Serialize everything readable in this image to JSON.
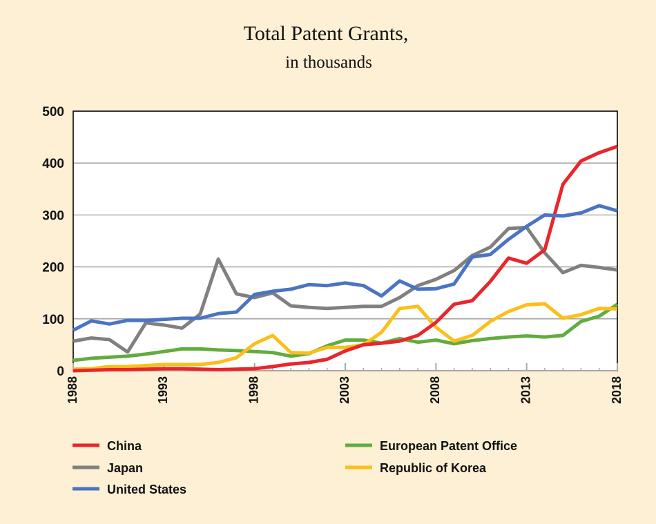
{
  "chart_data": {
    "type": "line",
    "title": "Total Patent Grants,",
    "subtitle": "in thousands",
    "xlabel": "",
    "ylabel": "",
    "xlim": [
      1988,
      2018
    ],
    "ylim": [
      0,
      500
    ],
    "yticks": [
      0,
      100,
      200,
      300,
      400,
      500
    ],
    "xticks": [
      1988,
      1993,
      1998,
      2003,
      2008,
      2013,
      2018
    ],
    "grid": true,
    "legend_position": "bottom",
    "x": [
      1988,
      1989,
      1990,
      1991,
      1992,
      1993,
      1994,
      1995,
      1996,
      1997,
      1998,
      1999,
      2000,
      2001,
      2002,
      2003,
      2004,
      2005,
      2006,
      2007,
      2008,
      2009,
      2010,
      2011,
      2012,
      2013,
      2014,
      2015,
      2016,
      2017,
      2018
    ],
    "series": [
      {
        "name": "China",
        "color": "#e8262b",
        "values": [
          0,
          1,
          2,
          2,
          3,
          4,
          4,
          3,
          2,
          3,
          4,
          8,
          13,
          16,
          22,
          38,
          50,
          53,
          57,
          68,
          93,
          128,
          135,
          172,
          217,
          207,
          233,
          359,
          404,
          420,
          432
        ]
      },
      {
        "name": "European Patent Office",
        "color": "#62ac3f",
        "values": [
          20,
          24,
          26,
          28,
          32,
          37,
          42,
          42,
          40,
          39,
          37,
          35,
          28,
          33,
          48,
          59,
          59,
          53,
          62,
          55,
          59,
          52,
          58,
          62,
          65,
          67,
          65,
          68,
          95,
          105,
          128
        ]
      },
      {
        "name": "Japan",
        "color": "#808080",
        "values": [
          57,
          63,
          60,
          36,
          92,
          88,
          82,
          109,
          215,
          148,
          141,
          150,
          125,
          122,
          120,
          122,
          124,
          124,
          141,
          164,
          176,
          193,
          222,
          238,
          274,
          276,
          227,
          189,
          203,
          199,
          194
        ]
      },
      {
        "name": "Republic of Korea",
        "color": "#fbbf1c",
        "values": [
          3,
          4,
          8,
          8,
          10,
          12,
          12,
          12,
          16,
          25,
          52,
          68,
          35,
          34,
          45,
          45,
          50,
          74,
          120,
          124,
          84,
          57,
          68,
          95,
          114,
          127,
          129,
          101,
          108,
          120,
          119
        ]
      },
      {
        "name": "United States",
        "color": "#4a74c4",
        "values": [
          78,
          96,
          90,
          97,
          97,
          99,
          101,
          101,
          110,
          113,
          147,
          153,
          157,
          166,
          164,
          169,
          164,
          144,
          173,
          157,
          158,
          167,
          219,
          224,
          253,
          278,
          300,
          298,
          304,
          318,
          308
        ]
      }
    ]
  }
}
